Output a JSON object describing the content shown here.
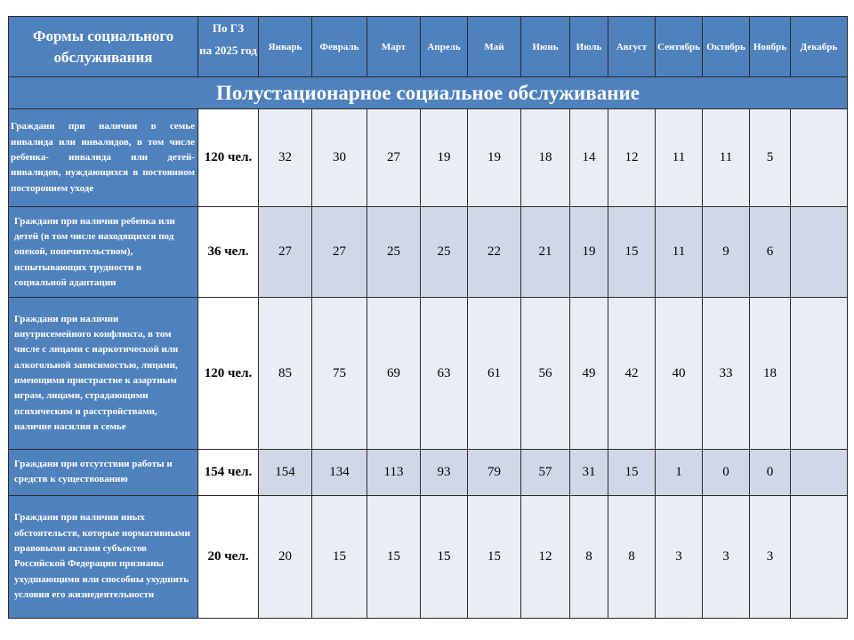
{
  "header": {
    "forms_label": "Формы социального обслуживания",
    "gz_line1": "По ГЗ",
    "gz_line2": "на 2025 год",
    "months": [
      "Январь",
      "Февраль",
      "Март",
      "Апрель",
      "Май",
      "Июнь",
      "Июль",
      "Август",
      "Сентябрь",
      "Октябрь",
      "Ноябрь",
      "Декабрь"
    ]
  },
  "section_title": "Полустационарное социальное обслуживание",
  "rows": [
    {
      "label": "Граждани при наличии в семье инвалида или инвалидов, в том числе ребенка- инвалида или детей- инвалидов, нуждающихся в постоянном постороннем уходе",
      "gz": "120 чел.",
      "values": [
        "32",
        "30",
        "27",
        "19",
        "19",
        "18",
        "14",
        "12",
        "11",
        "11",
        "5",
        ""
      ]
    },
    {
      "label": "Граждани при наличии ребенка или детей (в том числе находящихся под опекой, попечительством), испытывающих трудности в социальной адаптации",
      "gz": "36 чел.",
      "values": [
        "27",
        "27",
        "25",
        "25",
        "22",
        "21",
        "19",
        "15",
        "11",
        "9",
        "6",
        ""
      ]
    },
    {
      "label": "Граждани при наличии внутрисемейного конфликта, в том числе с лицами с наркотической или алкогольной зависимостью, лицами, имеющими пристрастие к азартным играм, лицами, страдающими психическим и расстройствами, наличие насилия в семье",
      "gz": "120 чел.",
      "values": [
        "85",
        "75",
        "69",
        "63",
        "61",
        "56",
        "49",
        "42",
        "40",
        "33",
        "18",
        ""
      ]
    },
    {
      "label": "Граждани при отсутствии работы и средств к существованию",
      "gz": "154 чел.",
      "values": [
        "154",
        "134",
        "113",
        "93",
        "79",
        "57",
        "31",
        "15",
        "1",
        "0",
        "0",
        ""
      ]
    },
    {
      "label": "Граждани при наличии иных обстоятельств, которые нормативными правовыми актами субъектов Российской Федерации признаны ухудшающими или способны ухудшить условия его жизнедеятельности",
      "gz": "20 чел.",
      "values": [
        "20",
        "15",
        "15",
        "15",
        "15",
        "12",
        "8",
        "8",
        "3",
        "3",
        "3",
        ""
      ]
    }
  ],
  "colors": {
    "header_blue": "#4f81bd",
    "row_light": "#e9edf4",
    "row_dark": "#d0d8e8"
  }
}
